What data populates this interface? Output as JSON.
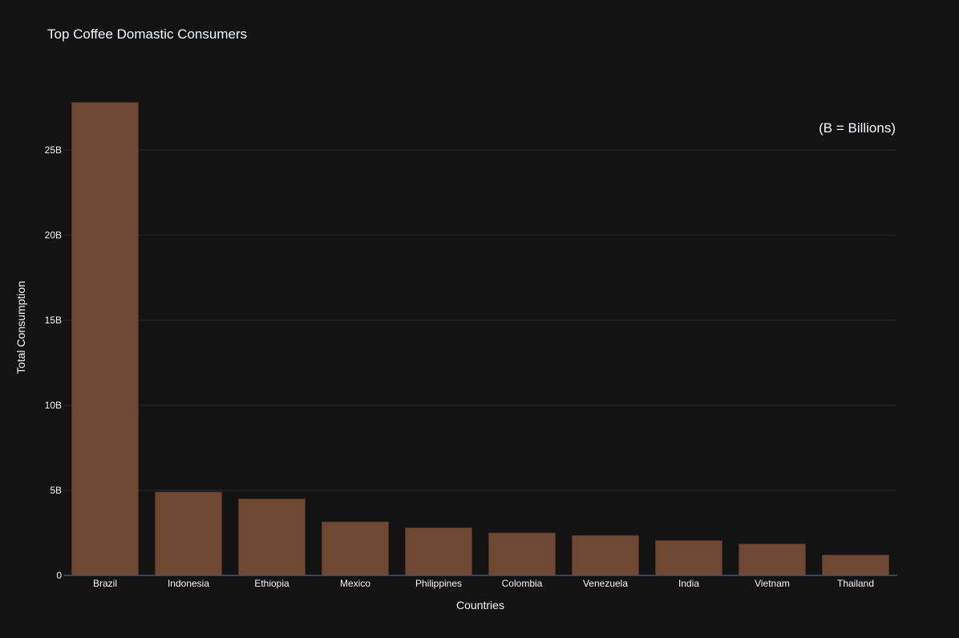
{
  "chart_data": {
    "type": "bar",
    "title": "Top Coffee Domastic Consumers",
    "annotation": "(B = Billions)",
    "xlabel": "Countries",
    "ylabel": "Total Consumption",
    "categories": [
      "Brazil",
      "Indonesia",
      "Ethiopia",
      "Mexico",
      "Philippines",
      "Colombia",
      "Venezuela",
      "India",
      "Vietnam",
      "Thailand"
    ],
    "values": [
      27.8,
      4.9,
      4.5,
      3.15,
      2.8,
      2.5,
      2.35,
      2.05,
      1.85,
      1.2
    ],
    "value_unit": "billions",
    "ylim": [
      0,
      28
    ],
    "yticks": [
      0,
      5,
      10,
      15,
      20,
      25
    ],
    "ytick_labels": [
      "0",
      "5B",
      "10B",
      "15B",
      "20B",
      "25B"
    ],
    "grid": true,
    "bar_color": "#6f4834",
    "background_color": "#131313",
    "grid_color": "#2c2e35"
  }
}
